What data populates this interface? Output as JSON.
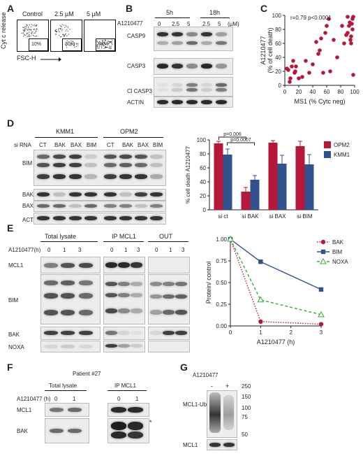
{
  "panels": {
    "a": "A",
    "b": "B",
    "c": "C",
    "d": "D",
    "e": "E",
    "f": "F",
    "g": "G"
  },
  "flow": {
    "yaxis": "Cyt c release",
    "xaxis": "FSC-H",
    "conditions": [
      "Control",
      "2.5 µM",
      "5 µM"
    ],
    "percents": [
      "10%",
      "30%",
      "94%"
    ]
  },
  "b": {
    "drug": "A1210477",
    "time_groups": [
      "5h",
      "18h"
    ],
    "doses": [
      "0",
      "2.5",
      "5",
      "2.5",
      "5"
    ],
    "unit": "(µM)",
    "rows": [
      "CASP9",
      "CASP3",
      "Cl CASP3",
      "ACTIN"
    ]
  },
  "d": {
    "groups": [
      "KMM1",
      "OPM2"
    ],
    "sirna_label": "si RNA",
    "lanes": [
      "CT",
      "BAK",
      "BAX",
      "BIM",
      "CT",
      "BAK",
      "BAX",
      "BIM"
    ],
    "rows": [
      "BIM",
      "BAK",
      "BAX",
      "ACTIN"
    ]
  },
  "e": {
    "sections": [
      "Total lysate",
      "IP MCL1",
      "OUT"
    ],
    "time_label": "A1210477(h)",
    "lanes": [
      "0",
      "1",
      "3"
    ],
    "rows": [
      "MCL1",
      "BIM",
      "BAK",
      "NOXA"
    ]
  },
  "f": {
    "patient": "Patient #27",
    "sections": [
      "Total lysate",
      "IP MCL1"
    ],
    "time_label": "A1210477 (h)",
    "lanes": [
      "0",
      "1"
    ],
    "rows": [
      "MCL1",
      "BAK"
    ],
    "asterisk": "*"
  },
  "g": {
    "drug": "A1210477",
    "lanes": [
      "-",
      "+"
    ],
    "rows": [
      "MCL1-Ub",
      "MCL1"
    ],
    "markers": [
      "250",
      "150",
      "100",
      "75",
      "50"
    ]
  },
  "chart_data": [
    {
      "type": "scatter",
      "annotation": "r=0.79 p<0.0001",
      "xlabel": "MS1 (% Cytc neg)",
      "ylabel": "A1210477\n(% of cell death)",
      "xlim": [
        0,
        100
      ],
      "ylim": [
        0,
        100
      ],
      "xticks": [
        0,
        20,
        40,
        60,
        80,
        100
      ],
      "yticks": [
        0,
        20,
        40,
        60,
        80,
        100
      ],
      "color": "#b5183a",
      "points": [
        [
          3,
          24
        ],
        [
          5,
          22
        ],
        [
          7,
          5
        ],
        [
          8,
          10
        ],
        [
          10,
          27
        ],
        [
          12,
          35
        ],
        [
          14,
          18
        ],
        [
          15,
          20
        ],
        [
          16,
          27
        ],
        [
          20,
          10
        ],
        [
          25,
          12
        ],
        [
          30,
          35
        ],
        [
          35,
          18
        ],
        [
          40,
          30
        ],
        [
          45,
          62
        ],
        [
          48,
          45
        ],
        [
          50,
          50
        ],
        [
          52,
          67
        ],
        [
          55,
          18
        ],
        [
          58,
          75
        ],
        [
          60,
          85
        ],
        [
          63,
          95
        ],
        [
          65,
          20
        ],
        [
          70,
          65
        ],
        [
          75,
          40
        ],
        [
          82,
          85
        ],
        [
          85,
          60
        ],
        [
          88,
          72
        ],
        [
          90,
          75
        ],
        [
          90,
          98
        ],
        [
          92,
          85
        ],
        [
          93,
          90
        ],
        [
          94,
          65
        ],
        [
          95,
          70
        ],
        [
          95,
          60
        ],
        [
          96,
          88
        ],
        [
          97,
          95
        ],
        [
          97,
          80
        ],
        [
          98,
          15
        ],
        [
          98,
          98
        ]
      ]
    },
    {
      "type": "bar",
      "ylabel": "% cell death A1210477",
      "categories": [
        "si ct",
        "si BAK",
        "si BAX",
        "si BIM"
      ],
      "ylim": [
        0,
        100
      ],
      "yticks": [
        0,
        20,
        40,
        60,
        80,
        100
      ],
      "legend": "right",
      "series": [
        {
          "name": "OPM2",
          "color": "#b5183a",
          "values": [
            95,
            26,
            96,
            91
          ],
          "errors": [
            3,
            6,
            3,
            7
          ]
        },
        {
          "name": "KMM1",
          "color": "#32528f",
          "values": [
            79,
            43,
            66,
            65
          ],
          "errors": [
            8,
            6,
            12,
            14
          ]
        }
      ],
      "annotations": [
        {
          "text": "p=0.006"
        },
        {
          "text": "p=0.0007"
        }
      ]
    },
    {
      "type": "line",
      "xlabel": "A1210477 (h)",
      "ylabel": "Protein/ control",
      "xlim": [
        0,
        3
      ],
      "ylim": [
        0,
        1
      ],
      "xticks": [
        0,
        1,
        2,
        3
      ],
      "yticks": [
        "0.00",
        "0.25",
        "0.50",
        "0.75",
        "1.00"
      ],
      "legend": "top-right",
      "series": [
        {
          "name": "BAK",
          "color": "#b5183a",
          "style": "dotted",
          "marker": "circle",
          "x": [
            0,
            1,
            3
          ],
          "y": [
            1.0,
            0.05,
            0.02
          ]
        },
        {
          "name": "BIM",
          "color": "#32528f",
          "style": "solid",
          "marker": "square",
          "x": [
            0,
            1,
            3
          ],
          "y": [
            1.0,
            0.74,
            0.42
          ]
        },
        {
          "name": "NOXA",
          "color": "#3aa83a",
          "style": "dashed",
          "marker": "triangle",
          "x": [
            0,
            1,
            3
          ],
          "y": [
            1.0,
            0.3,
            0.13
          ]
        }
      ]
    }
  ]
}
